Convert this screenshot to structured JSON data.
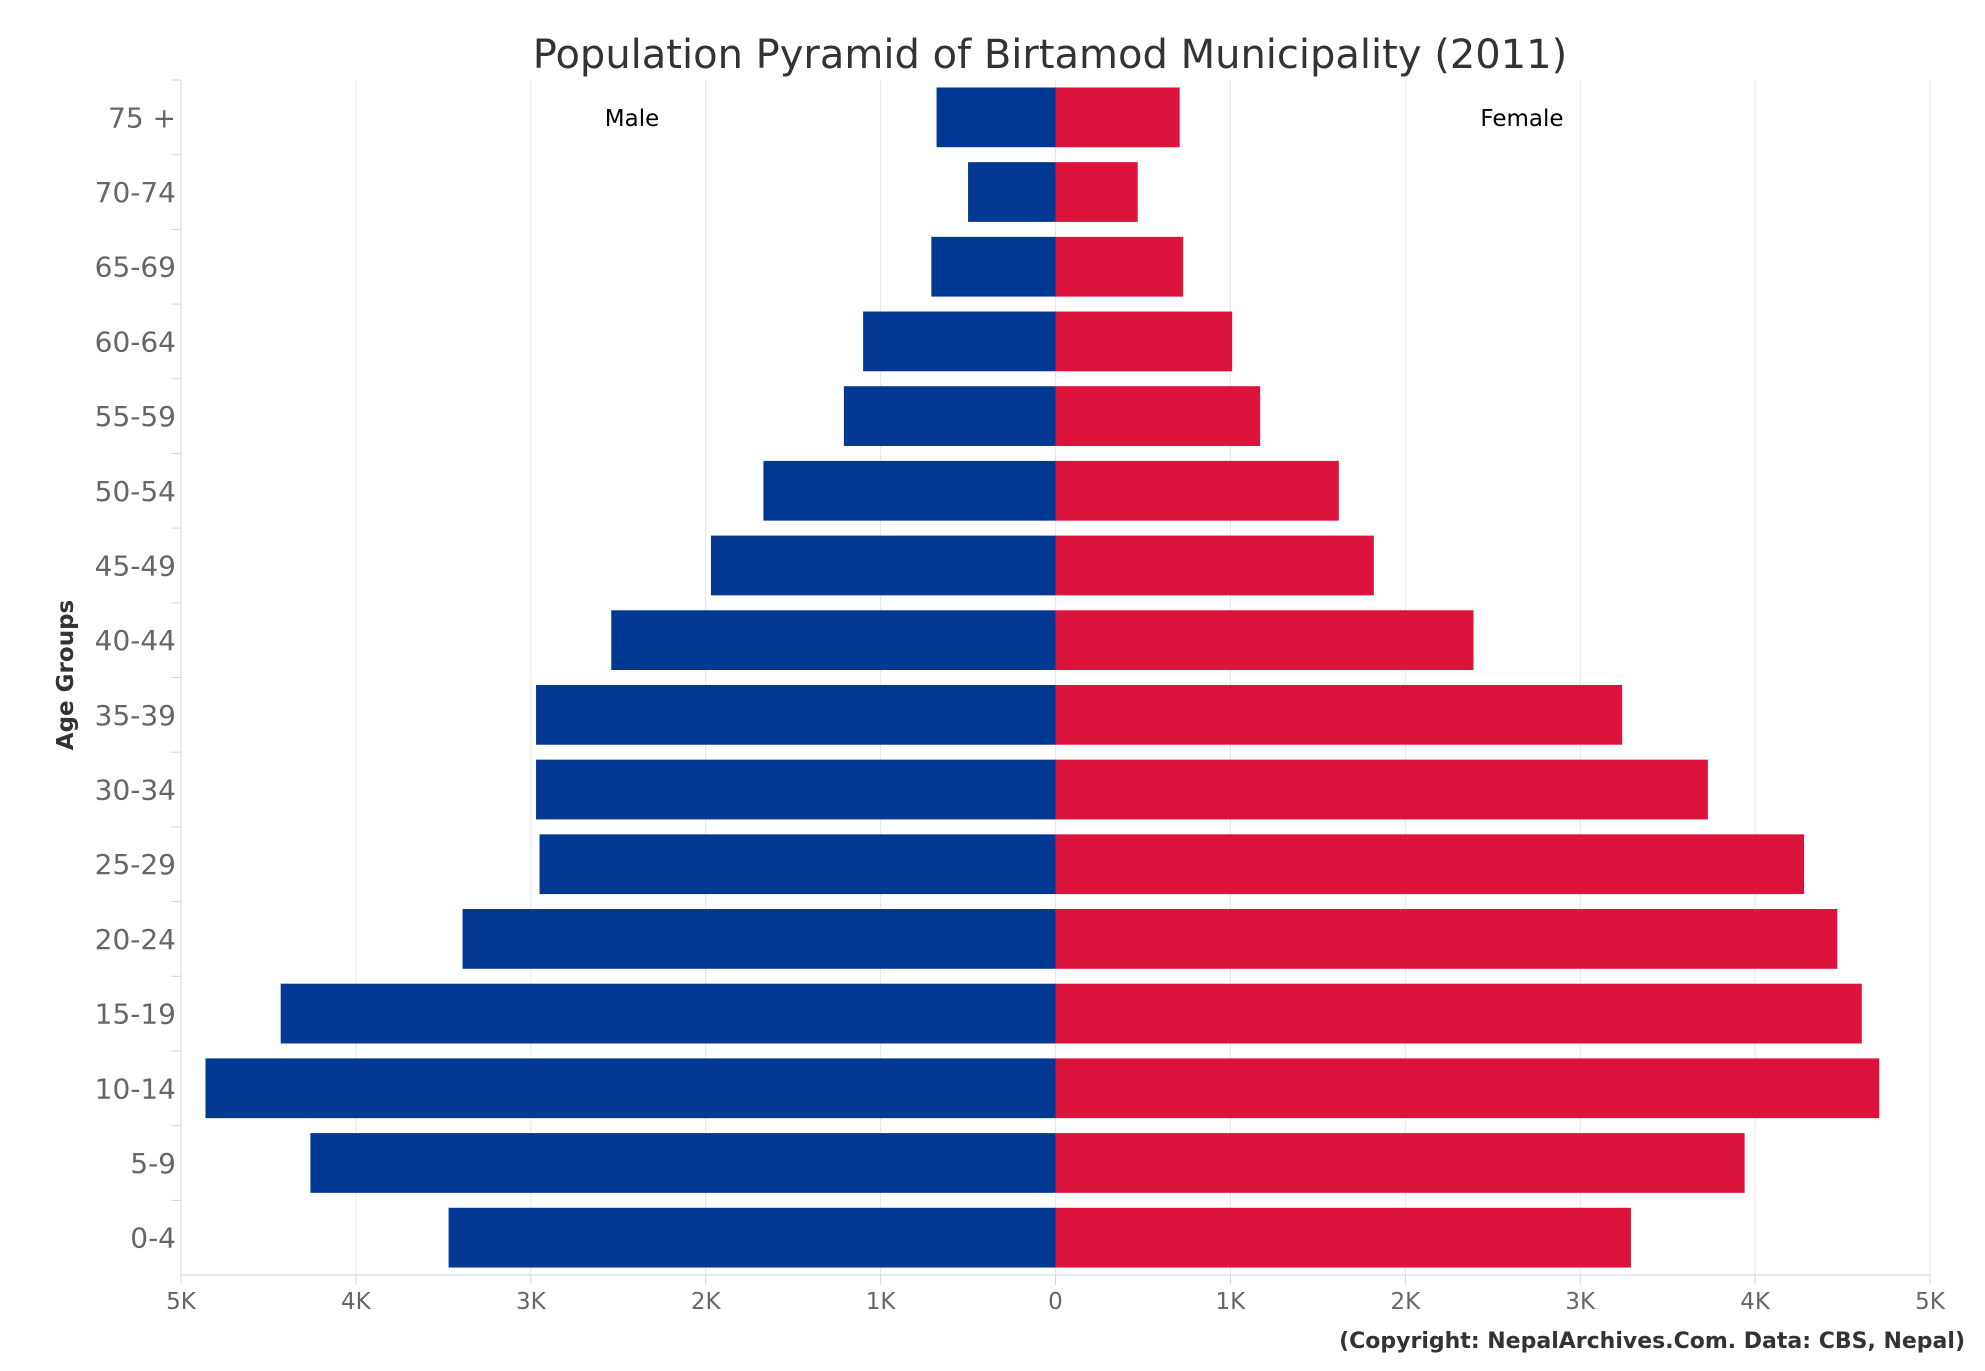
{
  "chart_data": {
    "type": "bar",
    "orientation": "horizontal-diverging",
    "title": "Population Pyramid of Birtamod Municipality (2011)",
    "ylabel": "Age Groups",
    "xlim": [
      -5000,
      5000
    ],
    "x_ticks": [
      {
        "value": -5000,
        "label": "5K"
      },
      {
        "value": -4000,
        "label": "4K"
      },
      {
        "value": -3000,
        "label": "3K"
      },
      {
        "value": -2000,
        "label": "2K"
      },
      {
        "value": -1000,
        "label": "1K"
      },
      {
        "value": 0,
        "label": "0"
      },
      {
        "value": 1000,
        "label": "1K"
      },
      {
        "value": 2000,
        "label": "2K"
      },
      {
        "value": 3000,
        "label": "3K"
      },
      {
        "value": 4000,
        "label": "4K"
      },
      {
        "value": 5000,
        "label": "5K"
      }
    ],
    "grid": true,
    "categories": [
      "75 +",
      "70-74",
      "65-69",
      "60-64",
      "55-59",
      "50-54",
      "45-49",
      "40-44",
      "35-39",
      "30-34",
      "25-29",
      "20-24",
      "15-19",
      "10-14",
      "5-9",
      "0-4"
    ],
    "series": [
      {
        "name": "Male",
        "color": "#003893",
        "values": [
          680,
          500,
          710,
          1100,
          1210,
          1670,
          1970,
          2540,
          2970,
          2970,
          2950,
          3390,
          4430,
          4860,
          4260,
          3470
        ]
      },
      {
        "name": "Female",
        "color": "#DC143C",
        "values": [
          710,
          470,
          730,
          1010,
          1170,
          1620,
          1820,
          2390,
          3240,
          3730,
          4280,
          4470,
          4610,
          4710,
          3940,
          3290
        ]
      }
    ],
    "credit": "(Copyright: NepalArchives.Com. Data: CBS, Nepal)"
  }
}
